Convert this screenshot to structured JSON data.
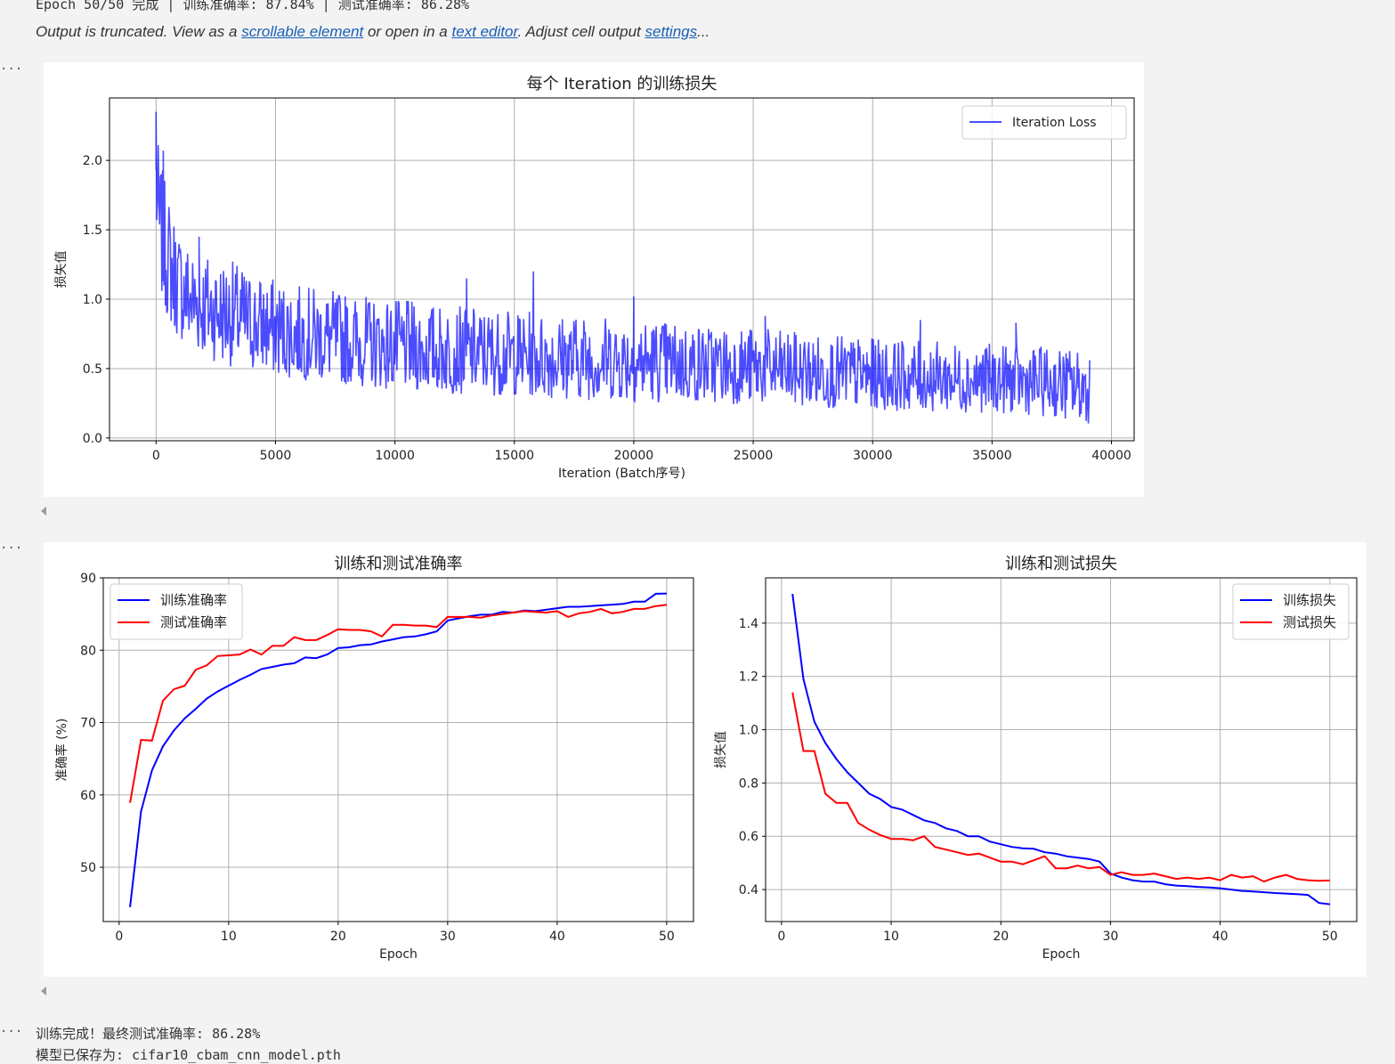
{
  "status_line": "Epoch 50/50 完成 | 训练准确率: 87.84% | 测试准确率: 86.28%",
  "truncation": {
    "prefix": "Output is truncated. View as a ",
    "link1": "scrollable element",
    "middle": " or open in a ",
    "link2": "text editor",
    "after": ". Adjust cell output ",
    "link3": "settings",
    "suffix": "..."
  },
  "cell_marker": "...",
  "final_output": {
    "line1": "训练完成！最终测试准确率: 86.28%",
    "line2": "模型已保存为: cifar10_cbam_cnn_model.pth"
  },
  "chart_data": [
    {
      "type": "line",
      "title": "每个 Iteration 的训练损失",
      "xlabel": "Iteration (Batch序号)",
      "ylabel": "损失值",
      "xlim": [
        -1950,
        40950
      ],
      "ylim": [
        -0.02,
        2.45
      ],
      "xticks": [
        0,
        5000,
        10000,
        15000,
        20000,
        25000,
        30000,
        35000,
        40000
      ],
      "yticks": [
        0.0,
        0.5,
        1.0,
        1.5,
        2.0
      ],
      "grid": true,
      "legend_position": "upper right",
      "series": [
        {
          "name": "Iteration Loss",
          "color": "#0000ff",
          "alpha": 0.7,
          "total_iterations": 39100,
          "envelope": {
            "x": [
              0,
              100,
              300,
              600,
              1000,
              1500,
              2000,
              3000,
              4000,
              5000,
              6000,
              7000,
              8000,
              9000,
              10000,
              12000,
              15000,
              17000,
              20000,
              22000,
              25000,
              27000,
              30000,
              32000,
              35000,
              37000,
              39100
            ],
            "upper": [
              2.35,
              2.1,
              1.9,
              1.7,
              1.5,
              1.4,
              1.35,
              1.3,
              1.2,
              1.15,
              1.1,
              1.08,
              1.05,
              1.02,
              1.0,
              0.96,
              0.92,
              0.9,
              0.88,
              0.84,
              0.8,
              0.76,
              0.72,
              0.7,
              0.68,
              0.66,
              0.64
            ],
            "lower": [
              1.4,
              1.1,
              0.95,
              0.8,
              0.7,
              0.62,
              0.58,
              0.52,
              0.48,
              0.44,
              0.42,
              0.4,
              0.38,
              0.36,
              0.34,
              0.32,
              0.3,
              0.28,
              0.26,
              0.25,
              0.24,
              0.22,
              0.2,
              0.19,
              0.18,
              0.16,
              0.1
            ]
          },
          "spikes": [
            [
              0,
              2.35
            ],
            [
              300,
              2.07
            ],
            [
              1800,
              1.45
            ],
            [
              13000,
              1.15
            ],
            [
              15800,
              1.2
            ],
            [
              20000,
              1.02
            ],
            [
              25500,
              0.88
            ],
            [
              32000,
              0.85
            ],
            [
              36000,
              0.83
            ]
          ]
        }
      ]
    },
    {
      "type": "line",
      "title": "训练和测试准确率",
      "xlabel": "Epoch",
      "ylabel": "准确率 (%)",
      "xlim": [
        -1.45,
        52.45
      ],
      "ylim": [
        42.5,
        90
      ],
      "xticks": [
        0,
        10,
        20,
        30,
        40,
        50
      ],
      "yticks": [
        50,
        60,
        70,
        80,
        90
      ],
      "grid": true,
      "legend_position": "upper left",
      "x": [
        1,
        2,
        3,
        4,
        5,
        6,
        7,
        8,
        9,
        10,
        11,
        12,
        13,
        14,
        15,
        16,
        17,
        18,
        19,
        20,
        21,
        22,
        23,
        24,
        25,
        26,
        27,
        28,
        29,
        30,
        31,
        32,
        33,
        34,
        35,
        36,
        37,
        38,
        39,
        40,
        41,
        42,
        43,
        44,
        45,
        46,
        47,
        48,
        49,
        50
      ],
      "series": [
        {
          "name": "训练准确率",
          "color": "#0000ff",
          "values": [
            44.5,
            57.7,
            63.4,
            66.7,
            68.9,
            70.6,
            71.9,
            73.3,
            74.3,
            75.1,
            75.9,
            76.6,
            77.4,
            77.7,
            78.0,
            78.2,
            79.0,
            78.9,
            79.4,
            80.3,
            80.4,
            80.7,
            80.8,
            81.2,
            81.5,
            81.8,
            81.9,
            82.2,
            82.6,
            84.1,
            84.4,
            84.7,
            84.9,
            84.9,
            85.3,
            85.2,
            85.5,
            85.4,
            85.6,
            85.8,
            86.0,
            86.0,
            86.1,
            86.2,
            86.3,
            86.4,
            86.7,
            86.7,
            87.8,
            87.84
          ]
        },
        {
          "name": "测试准确率",
          "color": "#ff0000",
          "values": [
            58.9,
            67.6,
            67.5,
            73.0,
            74.6,
            75.1,
            77.3,
            77.9,
            79.2,
            79.3,
            79.4,
            80.1,
            79.4,
            80.6,
            80.6,
            81.8,
            81.4,
            81.4,
            82.1,
            82.9,
            82.8,
            82.8,
            82.6,
            81.9,
            83.5,
            83.5,
            83.4,
            83.4,
            83.2,
            84.6,
            84.6,
            84.6,
            84.5,
            84.8,
            85.0,
            85.2,
            85.4,
            85.3,
            85.2,
            85.4,
            84.6,
            85.1,
            85.3,
            85.7,
            85.1,
            85.3,
            85.7,
            85.7,
            86.1,
            86.28
          ]
        }
      ]
    },
    {
      "type": "line",
      "title": "训练和测试损失",
      "xlabel": "Epoch",
      "ylabel": "损失值",
      "xlim": [
        -1.45,
        52.45
      ],
      "ylim": [
        0.28,
        1.57
      ],
      "xticks": [
        0,
        10,
        20,
        30,
        40,
        50
      ],
      "yticks": [
        0.4,
        0.6,
        0.8,
        1.0,
        1.2,
        1.4
      ],
      "grid": true,
      "legend_position": "upper right",
      "x": [
        1,
        2,
        3,
        4,
        5,
        6,
        7,
        8,
        9,
        10,
        11,
        12,
        13,
        14,
        15,
        16,
        17,
        18,
        19,
        20,
        21,
        22,
        23,
        24,
        25,
        26,
        27,
        28,
        29,
        30,
        31,
        32,
        33,
        34,
        35,
        36,
        37,
        38,
        39,
        40,
        41,
        42,
        43,
        44,
        45,
        46,
        47,
        48,
        49,
        50
      ],
      "series": [
        {
          "name": "训练损失",
          "color": "#0000ff",
          "values": [
            1.51,
            1.19,
            1.03,
            0.95,
            0.89,
            0.84,
            0.8,
            0.76,
            0.74,
            0.71,
            0.7,
            0.68,
            0.66,
            0.65,
            0.63,
            0.62,
            0.6,
            0.6,
            0.58,
            0.57,
            0.56,
            0.555,
            0.553,
            0.54,
            0.535,
            0.525,
            0.52,
            0.515,
            0.505,
            0.46,
            0.445,
            0.435,
            0.43,
            0.43,
            0.42,
            0.415,
            0.413,
            0.41,
            0.408,
            0.405,
            0.4,
            0.395,
            0.393,
            0.39,
            0.387,
            0.385,
            0.383,
            0.38,
            0.35,
            0.345
          ]
        },
        {
          "name": "测试损失",
          "color": "#ff0000",
          "values": [
            1.14,
            0.92,
            0.92,
            0.76,
            0.725,
            0.725,
            0.65,
            0.625,
            0.605,
            0.59,
            0.59,
            0.585,
            0.6,
            0.56,
            0.55,
            0.54,
            0.53,
            0.535,
            0.52,
            0.505,
            0.505,
            0.495,
            0.51,
            0.525,
            0.48,
            0.48,
            0.49,
            0.48,
            0.485,
            0.455,
            0.465,
            0.455,
            0.455,
            0.46,
            0.45,
            0.44,
            0.445,
            0.44,
            0.445,
            0.435,
            0.455,
            0.445,
            0.45,
            0.43,
            0.445,
            0.455,
            0.44,
            0.435,
            0.433,
            0.434
          ]
        }
      ]
    }
  ]
}
